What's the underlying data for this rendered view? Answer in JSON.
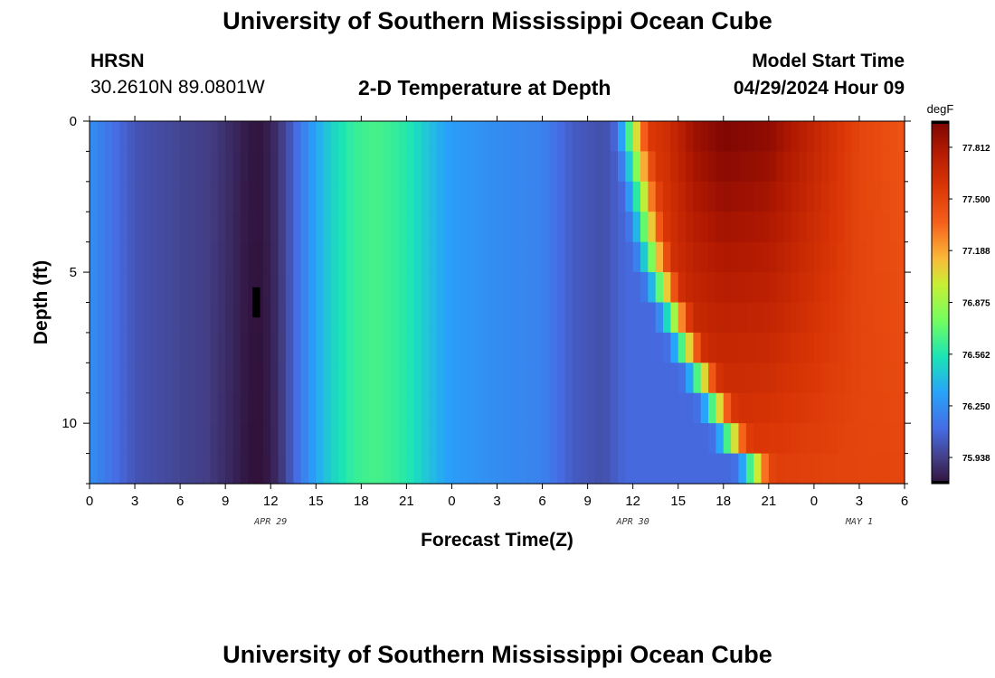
{
  "header": {
    "title": "University of Southern Mississippi Ocean Cube",
    "station": "HRSN",
    "coords": "30.2610N  89.0801W",
    "plot_title": "2-D Temperature at Depth",
    "model_start_label": "Model Start Time",
    "model_start_value": "04/29/2024 Hour 09"
  },
  "footer": {
    "title": "University of Southern Mississippi Ocean Cube"
  },
  "chart_data": {
    "type": "heatmap",
    "title": "2-D Temperature at Depth",
    "xlabel": "Forecast Time(Z)",
    "ylabel": "Depth (ft)",
    "x_range_hours": [
      0,
      54
    ],
    "y_range": [
      0,
      12
    ],
    "y_inverted": true,
    "x_ticks": [
      "0",
      "3",
      "6",
      "9",
      "12",
      "15",
      "18",
      "21",
      "0",
      "3",
      "6",
      "9",
      "12",
      "15",
      "18",
      "21",
      "0",
      "3",
      "6"
    ],
    "y_ticks": [
      0,
      5,
      10
    ],
    "date_labels": [
      {
        "label": "APR 29",
        "hour": 12
      },
      {
        "label": "APR 30",
        "hour": 36
      },
      {
        "label": "MAY 1",
        "hour": 51
      }
    ],
    "colorbar": {
      "unit": "degF",
      "min": 75.78,
      "max": 77.97,
      "ticks": [
        "77.812",
        "77.500",
        "77.188",
        "76.875",
        "76.562",
        "76.250",
        "75.938"
      ]
    },
    "colors": {
      "low": "#30123b",
      "mid": "#1ae4b6",
      "high": "#7a0403"
    },
    "depths": [
      0,
      1,
      2,
      3,
      4,
      5,
      6,
      7,
      8,
      9,
      10,
      11
    ],
    "temperature_profile": [
      {
        "hour": 0,
        "temp": 76.25
      },
      {
        "hour": 3,
        "temp": 76.02
      },
      {
        "hour": 6,
        "temp": 75.96
      },
      {
        "hour": 8,
        "temp": 75.93
      },
      {
        "hour": 9.5,
        "temp": 75.86
      },
      {
        "hour": 10.5,
        "temp": 75.8
      },
      {
        "hour": 11.2,
        "temp": 75.79
      },
      {
        "hour": 12,
        "temp": 75.83
      },
      {
        "hour": 13,
        "temp": 75.97
      },
      {
        "hour": 14.5,
        "temp": 76.26
      },
      {
        "hour": 16,
        "temp": 76.48
      },
      {
        "hour": 17.5,
        "temp": 76.62
      },
      {
        "hour": 19,
        "temp": 76.66
      },
      {
        "hour": 21,
        "temp": 76.58
      },
      {
        "hour": 23,
        "temp": 76.38
      },
      {
        "hour": 24,
        "temp": 76.3
      },
      {
        "hour": 27,
        "temp": 76.24
      },
      {
        "hour": 30,
        "temp": 76.2
      },
      {
        "hour": 32,
        "temp": 76.05
      },
      {
        "hour": 34,
        "temp": 76.0
      },
      {
        "hour": 35.5,
        "temp": 76.1
      }
    ],
    "rise_hours_by_depth": [
      37.5,
      37.8,
      38.1,
      38.4,
      38.8,
      39.4,
      40.2,
      41.0,
      42.0,
      43.0,
      44.0,
      45.5
    ],
    "upper_layer": [
      {
        "hour": 38,
        "temp": 77.6
      },
      {
        "hour": 40,
        "temp": 77.85
      },
      {
        "hour": 42,
        "temp": 77.95
      },
      {
        "hour": 45,
        "temp": 77.9
      },
      {
        "hour": 48,
        "temp": 77.7
      },
      {
        "hour": 51,
        "temp": 77.5
      },
      {
        "hour": 54,
        "temp": 77.42
      }
    ],
    "lower_layer_peak": 77.5,
    "missing_cell": {
      "hour": 11,
      "depth_start": 5.5,
      "depth_end": 6.5
    }
  }
}
